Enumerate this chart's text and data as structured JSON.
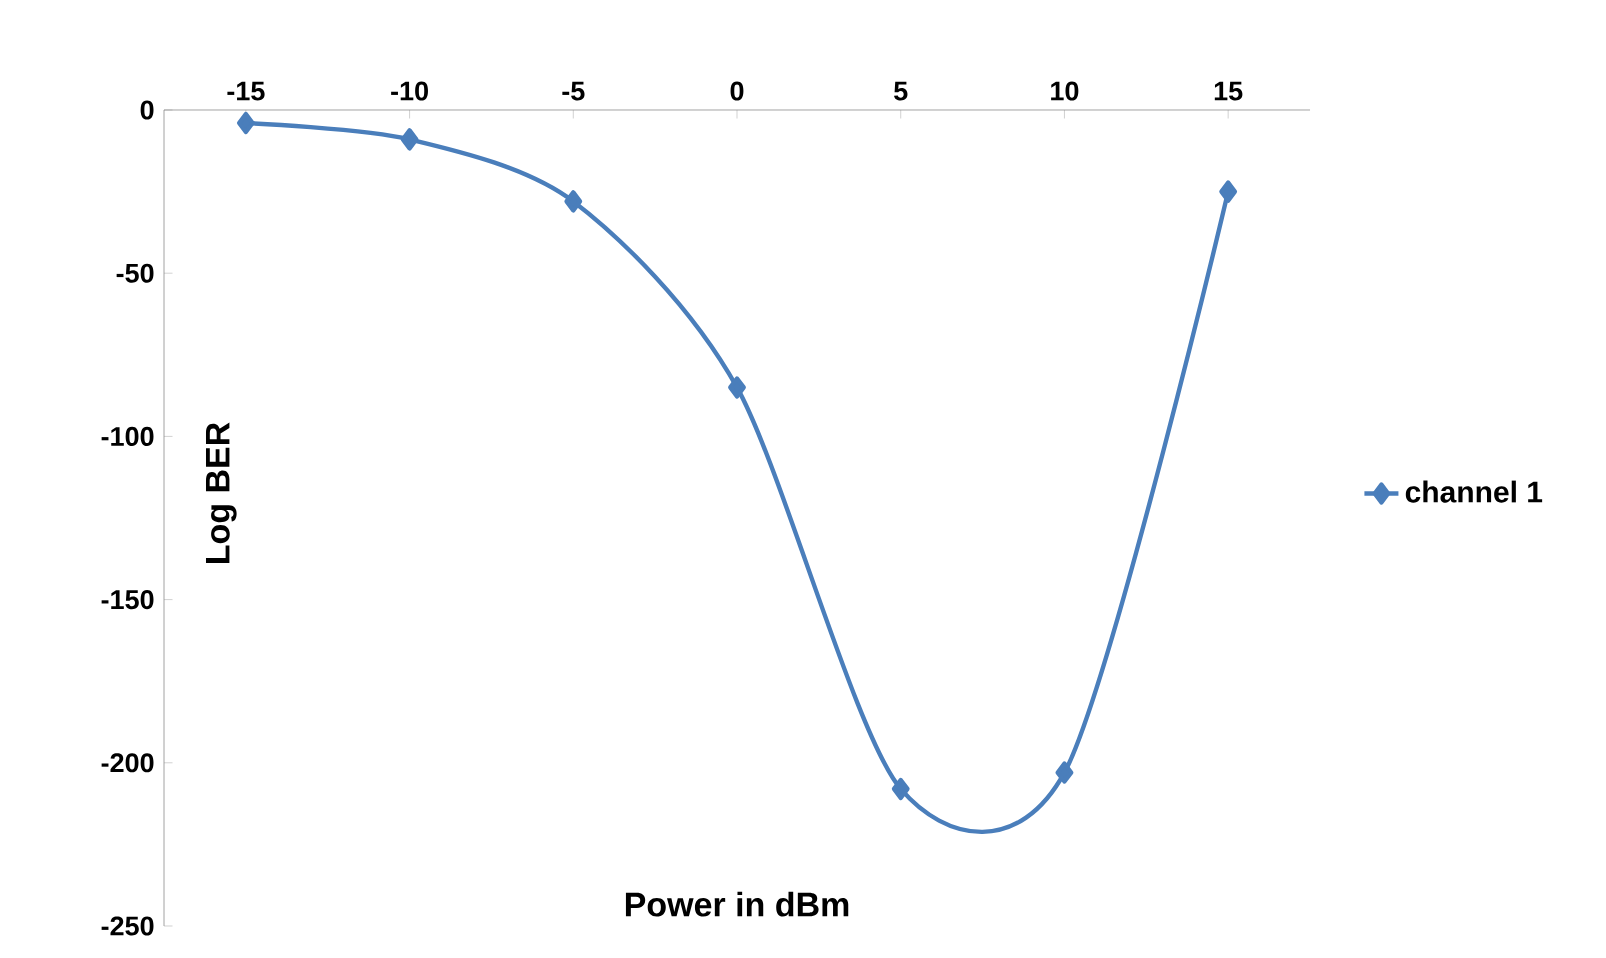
{
  "chart_data": {
    "type": "line",
    "xlabel": "Power in dBm",
    "ylabel": "Log BER",
    "categories": [
      "-15",
      "-10",
      "-5",
      "0",
      "5",
      "10",
      "15"
    ],
    "series": [
      {
        "name": "channel 1",
        "color": "#4a7ebb",
        "values": [
          -4,
          -9,
          -28,
          -85,
          -208,
          -203,
          -25
        ]
      }
    ],
    "ylim": [
      -250,
      0
    ],
    "yticks": [
      -250,
      -200,
      -150,
      -100,
      -50,
      0
    ],
    "legend": "right",
    "marker": "diamond",
    "line_style": "solid",
    "grid": false
  }
}
